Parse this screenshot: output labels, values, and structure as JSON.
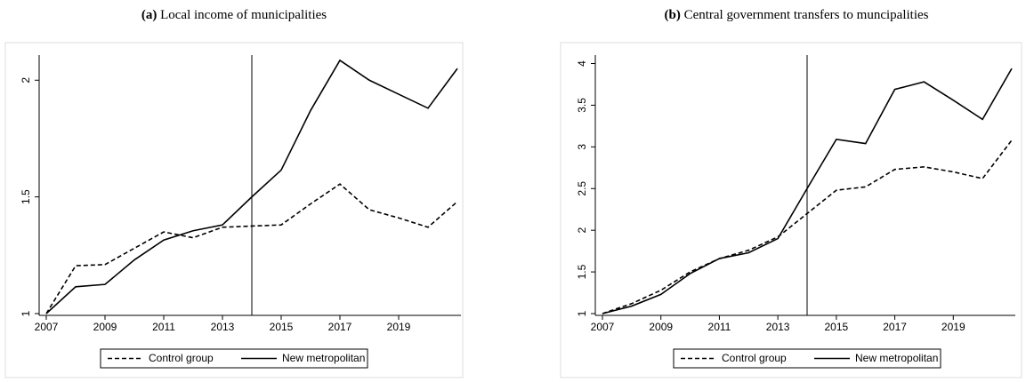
{
  "chart_data": [
    {
      "type": "line",
      "label": "(a)",
      "title": "Local income of municipalities",
      "x": [
        2007,
        2008,
        2009,
        2010,
        2011,
        2012,
        2013,
        2014,
        2015,
        2016,
        2017,
        2018,
        2019,
        2020,
        2021
      ],
      "xlim": [
        2007,
        2021
      ],
      "xticks": [
        2007,
        2009,
        2011,
        2013,
        2015,
        2017,
        2019
      ],
      "ylim": [
        1,
        2.1
      ],
      "yticks": [
        1,
        1.5,
        2
      ],
      "vline": 2014,
      "series": [
        {
          "name": "Control group",
          "color": "#000000",
          "dash": true,
          "values": [
            1.0,
            1.205,
            1.21,
            1.28,
            1.35,
            1.325,
            1.37,
            1.375,
            1.38,
            1.47,
            1.555,
            1.445,
            1.41,
            1.37,
            1.48
          ]
        },
        {
          "name": "New metropolitan",
          "color": "#000000",
          "dash": false,
          "values": [
            1.0,
            1.115,
            1.125,
            1.23,
            1.315,
            1.355,
            1.38,
            1.5,
            1.615,
            1.87,
            2.085,
            2.0,
            1.94,
            1.88,
            2.05
          ]
        }
      ]
    },
    {
      "type": "line",
      "label": "(b)",
      "title": "Central government transfers to muncipalities",
      "x": [
        2007,
        2008,
        2009,
        2010,
        2011,
        2012,
        2013,
        2014,
        2015,
        2016,
        2017,
        2018,
        2019,
        2020,
        2021
      ],
      "xlim": [
        2007,
        2021
      ],
      "xticks": [
        2007,
        2009,
        2011,
        2013,
        2015,
        2017,
        2019
      ],
      "ylim": [
        1,
        4.08
      ],
      "yticks": [
        1,
        1.5,
        2,
        2.5,
        3,
        3.5,
        4
      ],
      "vline": 2014,
      "series": [
        {
          "name": "Control group",
          "color": "#000000",
          "dash": true,
          "values": [
            1.0,
            1.12,
            1.28,
            1.5,
            1.66,
            1.76,
            1.92,
            2.2,
            2.48,
            2.52,
            2.73,
            2.76,
            2.7,
            2.62,
            3.08
          ]
        },
        {
          "name": "New metropolitan",
          "color": "#000000",
          "dash": false,
          "values": [
            1.0,
            1.09,
            1.23,
            1.48,
            1.66,
            1.73,
            1.9,
            2.5,
            3.09,
            3.04,
            3.69,
            3.78,
            3.56,
            3.33,
            3.94
          ]
        }
      ]
    }
  ]
}
